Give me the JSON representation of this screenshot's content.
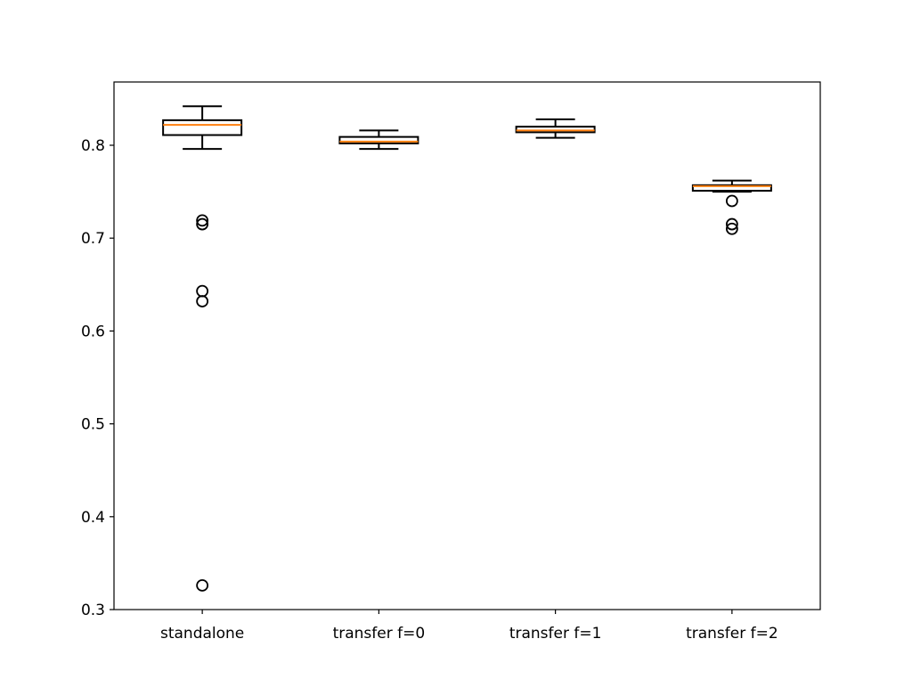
{
  "chart_data": {
    "type": "box",
    "categories": [
      "standalone",
      "transfer f=0",
      "transfer f=1",
      "transfer f=2"
    ],
    "boxes": [
      {
        "whisker_low": 0.796,
        "q1": 0.811,
        "median": 0.822,
        "q3": 0.827,
        "whisker_high": 0.842,
        "outliers": [
          0.719,
          0.715,
          0.643,
          0.632,
          0.326
        ]
      },
      {
        "whisker_low": 0.796,
        "q1": 0.802,
        "median": 0.804,
        "q3": 0.809,
        "whisker_high": 0.816,
        "outliers": []
      },
      {
        "whisker_low": 0.808,
        "q1": 0.814,
        "median": 0.816,
        "q3": 0.82,
        "whisker_high": 0.828,
        "outliers": []
      },
      {
        "whisker_low": 0.75,
        "q1": 0.751,
        "median": 0.756,
        "q3": 0.757,
        "whisker_high": 0.762,
        "outliers": [
          0.74,
          0.715,
          0.71
        ]
      }
    ],
    "yticks": [
      "0.3",
      "0.4",
      "0.5",
      "0.6",
      "0.7",
      "0.8"
    ],
    "ylim": [
      0.3,
      0.857
    ],
    "grid": false,
    "colors": {
      "box": "#000000",
      "median": "#ff7f0e"
    }
  }
}
